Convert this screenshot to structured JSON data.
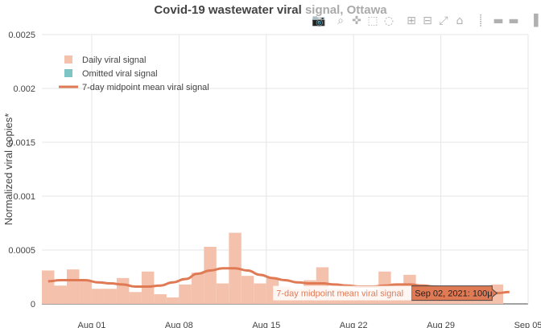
{
  "chart_data": {
    "type": "bar",
    "title_main": "Covid-19 wastewater viral ",
    "title_faded": "signal, Ottawa",
    "ylabel": "Normalized viral copies*",
    "xlabel": "",
    "ylim": [
      0,
      0.0025
    ],
    "y_ticks": [
      0,
      0.0005,
      0.001,
      0.0015,
      0.002,
      0.0025
    ],
    "y_tick_labels": [
      "0",
      "0.0005",
      "0.001",
      "0.0015",
      "0.002",
      "0.0025"
    ],
    "x_ticks": [
      "2021-08-01",
      "2021-08-08",
      "2021-08-15",
      "2021-08-22",
      "2021-08-29",
      "2021-09-05"
    ],
    "x_tick_labels": [
      "Aug 01",
      "Aug 08",
      "Aug 15",
      "Aug 22",
      "Aug 29",
      "Sep 05"
    ],
    "xlim": [
      "2021-07-28",
      "2021-09-05"
    ],
    "grid": true,
    "legend_position": "top-left",
    "colors": {
      "daily": "#f4c2ac",
      "omitted": "#7fc4c4",
      "mean": "#e07a55",
      "title": "#444444",
      "title_faded": "#aaaaaa",
      "grid": "#e6e6e6",
      "hover_bg": "#e07a55"
    },
    "series": [
      {
        "name": "Daily viral signal",
        "kind": "bar",
        "x": [
          "2021-07-28",
          "2021-07-29",
          "2021-07-30",
          "2021-07-31",
          "2021-08-01",
          "2021-08-02",
          "2021-08-03",
          "2021-08-04",
          "2021-08-05",
          "2021-08-06",
          "2021-08-07",
          "2021-08-08",
          "2021-08-09",
          "2021-08-10",
          "2021-08-11",
          "2021-08-12",
          "2021-08-13",
          "2021-08-14",
          "2021-08-15",
          "2021-08-16",
          "2021-08-17",
          "2021-08-18",
          "2021-08-19",
          "2021-08-20",
          "2021-08-21",
          "2021-08-22",
          "2021-08-23",
          "2021-08-24",
          "2021-08-25",
          "2021-08-26",
          "2021-08-27",
          "2021-08-28",
          "2021-08-29",
          "2021-08-30",
          "2021-08-31",
          "2021-09-01",
          "2021-09-02"
        ],
        "values": [
          0.00031,
          0.00017,
          0.00032,
          0.00021,
          0.00014,
          0.00014,
          0.00024,
          0.00011,
          0.0003,
          9e-05,
          6e-05,
          0.00018,
          0.00029,
          0.00053,
          0.00019,
          0.00066,
          0.00026,
          0.00019,
          0.00024,
          0.00016,
          0.00014,
          0.00022,
          0.00034,
          0.00014,
          0.00013,
          8e-05,
          9e-05,
          0.0003,
          0.00019,
          0.00027,
          0.00018,
          0.00016,
          9e-05,
          6e-05,
          3e-05,
          0.00012,
          0.00018
        ]
      },
      {
        "name": "Omitted viral signal",
        "kind": "bar",
        "x": [],
        "values": []
      },
      {
        "name": "7-day midpoint mean viral signal",
        "kind": "line",
        "x": [
          "2021-07-28",
          "2021-07-29",
          "2021-07-30",
          "2021-07-31",
          "2021-08-01",
          "2021-08-02",
          "2021-08-03",
          "2021-08-04",
          "2021-08-05",
          "2021-08-06",
          "2021-08-07",
          "2021-08-08",
          "2021-08-09",
          "2021-08-10",
          "2021-08-11",
          "2021-08-12",
          "2021-08-13",
          "2021-08-14",
          "2021-08-15",
          "2021-08-16",
          "2021-08-17",
          "2021-08-18",
          "2021-08-19",
          "2021-08-20",
          "2021-08-21",
          "2021-08-22",
          "2021-08-23",
          "2021-08-24",
          "2021-08-25",
          "2021-08-26",
          "2021-08-27",
          "2021-08-28",
          "2021-08-29",
          "2021-08-30",
          "2021-08-31",
          "2021-09-01",
          "2021-09-02",
          "2021-09-03"
        ],
        "values": [
          0.00021,
          0.00022,
          0.00022,
          0.00022,
          0.0002,
          0.00019,
          0.00018,
          0.00016,
          0.00016,
          0.00017,
          0.0002,
          0.00023,
          0.00028,
          0.00031,
          0.00033,
          0.00033,
          0.00031,
          0.00027,
          0.00024,
          0.00022,
          0.0002,
          0.00019,
          0.00019,
          0.00018,
          0.00017,
          0.00016,
          0.00016,
          0.00017,
          0.00018,
          0.00018,
          0.00017,
          0.00016,
          0.00014,
          0.00012,
          0.00011,
          0.0001,
          0.0001,
          0.00011
        ]
      }
    ],
    "hover": {
      "series_label": "7-day midpoint mean viral signal",
      "value_label": "Sep 02, 2021: 100μ",
      "x": "2021-09-02",
      "value": 0.0001
    }
  },
  "toolbar": {
    "items": [
      {
        "name": "camera-icon",
        "glyph": "📷"
      },
      {
        "name": "zoom-icon",
        "glyph": "⌕"
      },
      {
        "name": "pan-icon",
        "glyph": "✜"
      },
      {
        "name": "box-select-icon",
        "glyph": "⬚"
      },
      {
        "name": "lasso-select-icon",
        "glyph": "◌"
      },
      {
        "name": "zoom-in-icon",
        "glyph": "⊞"
      },
      {
        "name": "zoom-out-icon",
        "glyph": "⊟"
      },
      {
        "name": "autoscale-icon",
        "glyph": "⤢"
      },
      {
        "name": "reset-axes-icon",
        "glyph": "⌂"
      },
      {
        "name": "spike-lines-icon",
        "glyph": "⸽"
      },
      {
        "name": "hover-closest-icon",
        "glyph": "▬"
      },
      {
        "name": "hover-compare-icon",
        "glyph": "▬"
      },
      {
        "name": "plotly-logo-icon",
        "glyph": "▐"
      }
    ]
  }
}
